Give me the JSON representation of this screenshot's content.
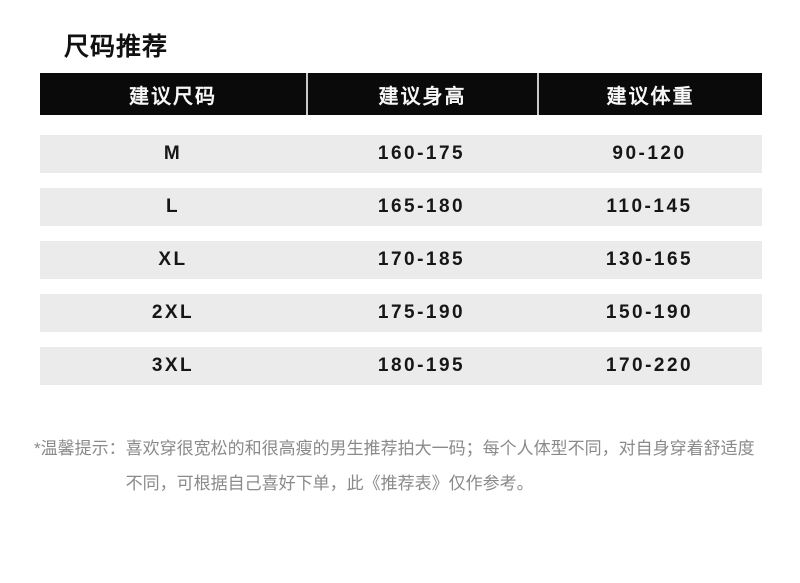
{
  "page": {
    "title": "尺码推荐"
  },
  "colors": {
    "header_background": "#0a0a0a",
    "header_text": "#f7f7f7",
    "row_background": "#ebebeb",
    "body_text": "#161616",
    "note_text": "#8a8a8a",
    "divider": "#c9c9c9"
  },
  "table": {
    "columns": [
      {
        "label": "建议尺码"
      },
      {
        "label": "建议身高"
      },
      {
        "label": "建议体重"
      }
    ],
    "rows": [
      {
        "size": "M",
        "height": "160-175",
        "weight": "90-120"
      },
      {
        "size": "L",
        "height": "165-180",
        "weight": "110-145"
      },
      {
        "size": "XL",
        "height": "170-185",
        "weight": "130-165"
      },
      {
        "size": "2XL",
        "height": "175-190",
        "weight": "150-190"
      },
      {
        "size": "3XL",
        "height": "180-195",
        "weight": "170-220"
      }
    ]
  },
  "note": {
    "label": "*温馨提示：",
    "line1": "喜欢穿很宽松的和很高瘦的男生推荐拍大一码；每个人体型不同，对自身穿着舒适度",
    "line2": "不同，可根据自己喜好下单，此《推荐表》仅作参考。"
  }
}
